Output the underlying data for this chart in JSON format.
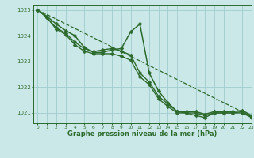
{
  "bg_color": "#cbe8e8",
  "grid_color": "#a0cccc",
  "line_color": "#2d6a2d",
  "title": "Graphe pression niveau de la mer (hPa)",
  "xlim": [
    -0.5,
    23
  ],
  "ylim": [
    1020.6,
    1025.2
  ],
  "yticks": [
    1021,
    1022,
    1023,
    1024,
    1025
  ],
  "xticks": [
    0,
    1,
    2,
    3,
    4,
    5,
    6,
    7,
    8,
    9,
    10,
    11,
    12,
    13,
    14,
    15,
    16,
    17,
    18,
    19,
    20,
    21,
    22,
    23
  ],
  "series": [
    {
      "x": [
        0,
        1,
        2,
        3,
        4,
        5,
        6,
        7,
        8,
        9,
        10,
        11,
        12,
        13,
        14,
        15,
        16,
        17,
        18,
        19,
        20,
        21,
        22,
        23
      ],
      "y": [
        1025.0,
        1024.82,
        1024.64,
        1024.46,
        1024.28,
        1024.1,
        1023.92,
        1023.74,
        1023.56,
        1023.38,
        1023.2,
        1023.02,
        1022.84,
        1022.66,
        1022.48,
        1022.3,
        1022.12,
        1021.94,
        1021.76,
        1021.58,
        1021.4,
        1021.22,
        1021.04,
        1020.86
      ],
      "marker": null,
      "markersize": 0,
      "linewidth": 0.9,
      "linestyle": "--"
    },
    {
      "x": [
        0,
        1,
        2,
        3,
        4,
        5,
        6,
        7,
        8,
        9,
        10,
        11,
        12,
        13,
        14,
        15,
        16,
        17,
        18,
        19,
        20,
        21,
        22,
        23
      ],
      "y": [
        1025.0,
        1024.75,
        1024.45,
        1024.2,
        1024.0,
        1023.55,
        1023.35,
        1023.35,
        1023.45,
        1023.5,
        1024.15,
        1024.45,
        1022.55,
        1021.85,
        1021.4,
        1021.05,
        1021.05,
        1021.05,
        1020.95,
        1021.05,
        1021.05,
        1021.05,
        1021.1,
        1020.9
      ],
      "marker": "D",
      "markersize": 2.5,
      "linewidth": 1.1,
      "linestyle": "-"
    },
    {
      "x": [
        0,
        1,
        2,
        3,
        4,
        5,
        6,
        7,
        8,
        9,
        10,
        11,
        12,
        13,
        14,
        15,
        16,
        17,
        18,
        19,
        20,
        21,
        22,
        23
      ],
      "y": [
        1025.0,
        1024.7,
        1024.3,
        1024.1,
        1023.75,
        1023.5,
        1023.38,
        1023.45,
        1023.5,
        1023.4,
        1023.25,
        1022.55,
        1022.2,
        1021.65,
        1021.35,
        1021.05,
        1021.0,
        1021.0,
        1020.9,
        1021.0,
        1021.0,
        1021.0,
        1021.05,
        1020.85
      ],
      "marker": "D",
      "markersize": 2.5,
      "linewidth": 1.0,
      "linestyle": "-"
    },
    {
      "x": [
        0,
        1,
        2,
        3,
        4,
        5,
        6,
        7,
        8,
        9,
        10,
        11,
        12,
        13,
        14,
        15,
        16,
        17,
        18,
        19,
        20,
        21,
        22,
        23
      ],
      "y": [
        1025.0,
        1024.7,
        1024.25,
        1024.05,
        1023.65,
        1023.4,
        1023.3,
        1023.3,
        1023.3,
        1023.2,
        1023.05,
        1022.4,
        1022.1,
        1021.55,
        1021.25,
        1021.0,
        1021.0,
        1020.9,
        1020.82,
        1021.0,
        1021.0,
        1021.0,
        1021.0,
        1020.82
      ],
      "marker": "D",
      "markersize": 2.5,
      "linewidth": 1.0,
      "linestyle": "-"
    }
  ]
}
